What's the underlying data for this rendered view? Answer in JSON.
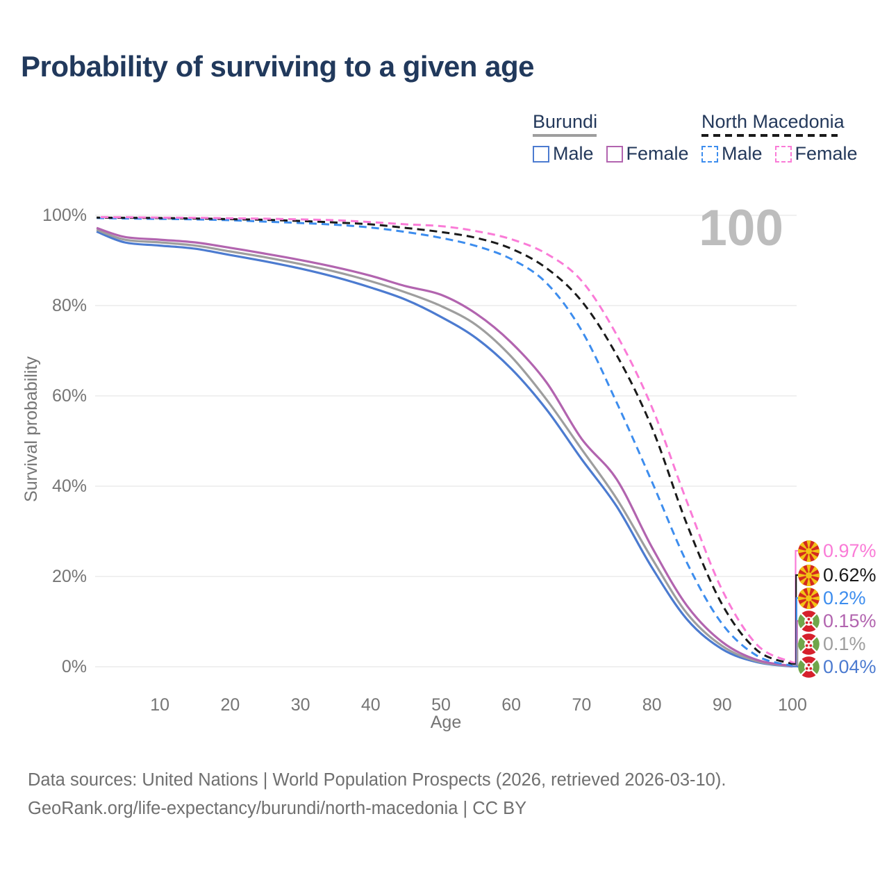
{
  "title": "Probability of surviving to a given age",
  "watermark_age": "100",
  "legend": {
    "groups": [
      {
        "name": "Burundi",
        "style": "solid",
        "rule_color": "#9e9e9e",
        "items": [
          {
            "label": "Male",
            "color": "#4c7bd0"
          },
          {
            "label": "Female",
            "color": "#b264af"
          }
        ]
      },
      {
        "name": "North Macedonia",
        "style": "dashed",
        "rule_color": "#1a1a1a",
        "items": [
          {
            "label": "Male",
            "color": "#3d8dee"
          },
          {
            "label": "Female",
            "color": "#fa7bd7"
          }
        ]
      }
    ]
  },
  "axes": {
    "x": {
      "title": "Age",
      "ticks": [
        10,
        20,
        30,
        40,
        50,
        60,
        70,
        80,
        90,
        100
      ],
      "range": [
        1,
        100
      ]
    },
    "y": {
      "title": "Survival probability",
      "ticks": [
        {
          "label": "100%",
          "value": 100
        },
        {
          "label": "80%",
          "value": 80
        },
        {
          "label": "60%",
          "value": 60
        },
        {
          "label": "40%",
          "value": 40
        },
        {
          "label": "20%",
          "value": 20
        },
        {
          "label": "0%",
          "value": 0
        }
      ],
      "range": [
        0,
        100
      ]
    }
  },
  "end_labels": [
    {
      "text": "0.97%",
      "value": 0.97,
      "color": "#fa7bd7",
      "flag": "north-macedonia",
      "series": "mkd_female"
    },
    {
      "text": "0.62%",
      "value": 0.62,
      "color": "#1a1a1a",
      "flag": "north-macedonia",
      "series": "mkd_total"
    },
    {
      "text": "0.2%",
      "value": 0.2,
      "color": "#3d8dee",
      "flag": "north-macedonia",
      "series": "mkd_male"
    },
    {
      "text": "0.15%",
      "value": 0.15,
      "color": "#b264af",
      "flag": "burundi",
      "series": "bdi_female"
    },
    {
      "text": "0.1%",
      "value": 0.1,
      "color": "#9e9e9e",
      "flag": "burundi",
      "series": "bdi_total"
    },
    {
      "text": "0.04%",
      "value": 0.04,
      "color": "#4c7bd0",
      "flag": "burundi",
      "series": "bdi_male"
    }
  ],
  "footer": {
    "line1": "Data sources: United Nations | World Population Prospects (2026, retrieved 2026-03-10).",
    "line2": "GeoRank.org/life-expectancy/burundi/north-macedonia | CC BY"
  },
  "chart_data": {
    "type": "line",
    "title": "Probability of surviving to a given age",
    "xlabel": "Age",
    "ylabel": "Survival probability",
    "xlim": [
      1,
      100
    ],
    "ylim": [
      0,
      100
    ],
    "y_unit": "%",
    "grid": "horizontal",
    "legend_position": "top-right",
    "ages": [
      1,
      5,
      10,
      15,
      20,
      25,
      30,
      35,
      40,
      45,
      50,
      55,
      60,
      65,
      70,
      75,
      80,
      85,
      90,
      95,
      100
    ],
    "series": [
      {
        "key": "bdi_male",
        "name": "Burundi — Male",
        "color": "#4c7bd0",
        "dash": "solid",
        "values": [
          96.4,
          94.0,
          93.3,
          92.6,
          91.2,
          89.8,
          88.2,
          86.3,
          84.0,
          81.3,
          77.5,
          72.8,
          66.0,
          57.0,
          46.0,
          35.5,
          22.0,
          10.5,
          3.9,
          1.0,
          0.04
        ]
      },
      {
        "key": "bdi_total",
        "name": "Burundi — Both sexes",
        "color": "#9e9e9e",
        "dash": "solid",
        "values": [
          96.8,
          94.6,
          94.0,
          93.3,
          92.0,
          90.7,
          89.2,
          87.5,
          85.4,
          82.9,
          79.9,
          75.7,
          68.7,
          59.2,
          48.2,
          37.2,
          24.0,
          11.8,
          4.6,
          1.2,
          0.1
        ]
      },
      {
        "key": "bdi_female",
        "name": "Burundi — Female",
        "color": "#b264af",
        "dash": "solid",
        "values": [
          97.2,
          95.2,
          94.6,
          94.0,
          92.8,
          91.5,
          90.1,
          88.5,
          86.6,
          84.3,
          82.4,
          78.2,
          71.8,
          63.0,
          50.5,
          41.5,
          26.5,
          13.5,
          5.5,
          1.5,
          0.15
        ]
      },
      {
        "key": "mkd_male",
        "name": "North Macedonia — Male",
        "color": "#3d8dee",
        "dash": "dashed",
        "values": [
          99.4,
          99.3,
          99.2,
          99.1,
          98.9,
          98.6,
          98.3,
          97.9,
          97.3,
          96.3,
          95.0,
          93.2,
          90.3,
          85.0,
          74.5,
          58.5,
          41.0,
          23.0,
          9.5,
          2.4,
          0.2
        ]
      },
      {
        "key": "mkd_total",
        "name": "North Macedonia — Both sexes",
        "color": "#1a1a1a",
        "dash": "dashed",
        "values": [
          99.5,
          99.45,
          99.4,
          99.3,
          99.15,
          99.0,
          98.75,
          98.4,
          98.0,
          97.2,
          96.3,
          95.0,
          92.6,
          88.3,
          81.0,
          69.0,
          53.0,
          31.5,
          13.8,
          3.6,
          0.62
        ]
      },
      {
        "key": "mkd_female",
        "name": "North Macedonia — Female",
        "color": "#fa7bd7",
        "dash": "dashed",
        "values": [
          99.6,
          99.57,
          99.5,
          99.45,
          99.35,
          99.25,
          99.1,
          98.9,
          98.5,
          98.0,
          97.6,
          96.5,
          94.7,
          91.5,
          85.5,
          73.5,
          57.5,
          36.5,
          17.0,
          4.8,
          0.97
        ]
      }
    ]
  }
}
